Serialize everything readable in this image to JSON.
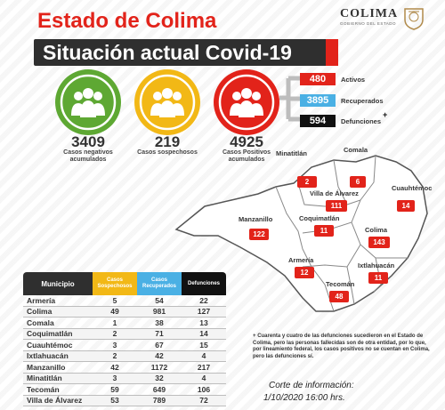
{
  "header": {
    "title": "Estado de Colima",
    "banner": "Situación actual Covid-19",
    "logo_name": "COLIMA",
    "logo_sub": "GOBIERNO DEL ESTADO"
  },
  "summary": {
    "negatives": {
      "value": "3409",
      "label_line1": "Casos negativos",
      "label_line2": "acumulados",
      "color": "#5ea833"
    },
    "suspects": {
      "value": "219",
      "label_line1": "Casos sospechosos",
      "label_line2": "",
      "color": "#f2b816"
    },
    "positives": {
      "value": "4925",
      "label_line1": "Casos Positivos",
      "label_line2": "acumulados",
      "color": "#e2231a"
    }
  },
  "breakdown": [
    {
      "value": "480",
      "label": "Activos",
      "color": "#e2231a"
    },
    {
      "value": "3895",
      "label": "Recuperados",
      "color": "#4ab0e4"
    },
    {
      "value": "594",
      "label": "Defunciones",
      "color": "#111111",
      "marker": "+"
    }
  ],
  "map": {
    "municipalities": [
      {
        "name": "Minatitlán",
        "value": "2"
      },
      {
        "name": "Comala",
        "value": "6"
      },
      {
        "name": "Villa de Álvarez",
        "value": "111"
      },
      {
        "name": "Cuauhtémoc",
        "value": "14"
      },
      {
        "name": "Manzanillo",
        "value": "122"
      },
      {
        "name": "Coquimatlán",
        "value": "11"
      },
      {
        "name": "Colima",
        "value": "143"
      },
      {
        "name": "Armería",
        "value": "12"
      },
      {
        "name": "Ixtlahuacán",
        "value": "11"
      },
      {
        "name": "Tecomán",
        "value": "48"
      }
    ]
  },
  "table": {
    "headers": {
      "municipio": "Municipio",
      "sospechosos_1": "Casos",
      "sospechosos_2": "Sospechosos",
      "recuperados_1": "Casos",
      "recuperados_2": "Recuperados",
      "defunciones": "Defunciones"
    },
    "rows": [
      {
        "name": "Armería",
        "sos": "5",
        "rec": "54",
        "def": "22"
      },
      {
        "name": "Colima",
        "sos": "49",
        "rec": "981",
        "def": "127"
      },
      {
        "name": "Comala",
        "sos": "1",
        "rec": "38",
        "def": "13"
      },
      {
        "name": "Coquimatlán",
        "sos": "2",
        "rec": "71",
        "def": "14"
      },
      {
        "name": "Cuauhtémoc",
        "sos": "3",
        "rec": "67",
        "def": "15"
      },
      {
        "name": "Ixtlahuacán",
        "sos": "2",
        "rec": "42",
        "def": "4"
      },
      {
        "name": "Manzanillo",
        "sos": "42",
        "rec": "1172",
        "def": "217"
      },
      {
        "name": "Minatitlán",
        "sos": "3",
        "rec": "32",
        "def": "4"
      },
      {
        "name": "Tecomán",
        "sos": "59",
        "rec": "649",
        "def": "106"
      },
      {
        "name": "Villa de Álvarez",
        "sos": "53",
        "rec": "789",
        "def": "72"
      }
    ]
  },
  "note": {
    "marker": "+",
    "text": "Cuarenta y cuatro de las defunciones sucedieron en el Estado de Colima, pero las personas fallecidas son de otra entidad, por lo que, por lineamiento federal, los casos positivos no se cuentan en Colima, pero las defunciones sí."
  },
  "footer": {
    "corte_label": "Corte de información:",
    "corte_date": "1/10/2020 16:00 hrs."
  }
}
